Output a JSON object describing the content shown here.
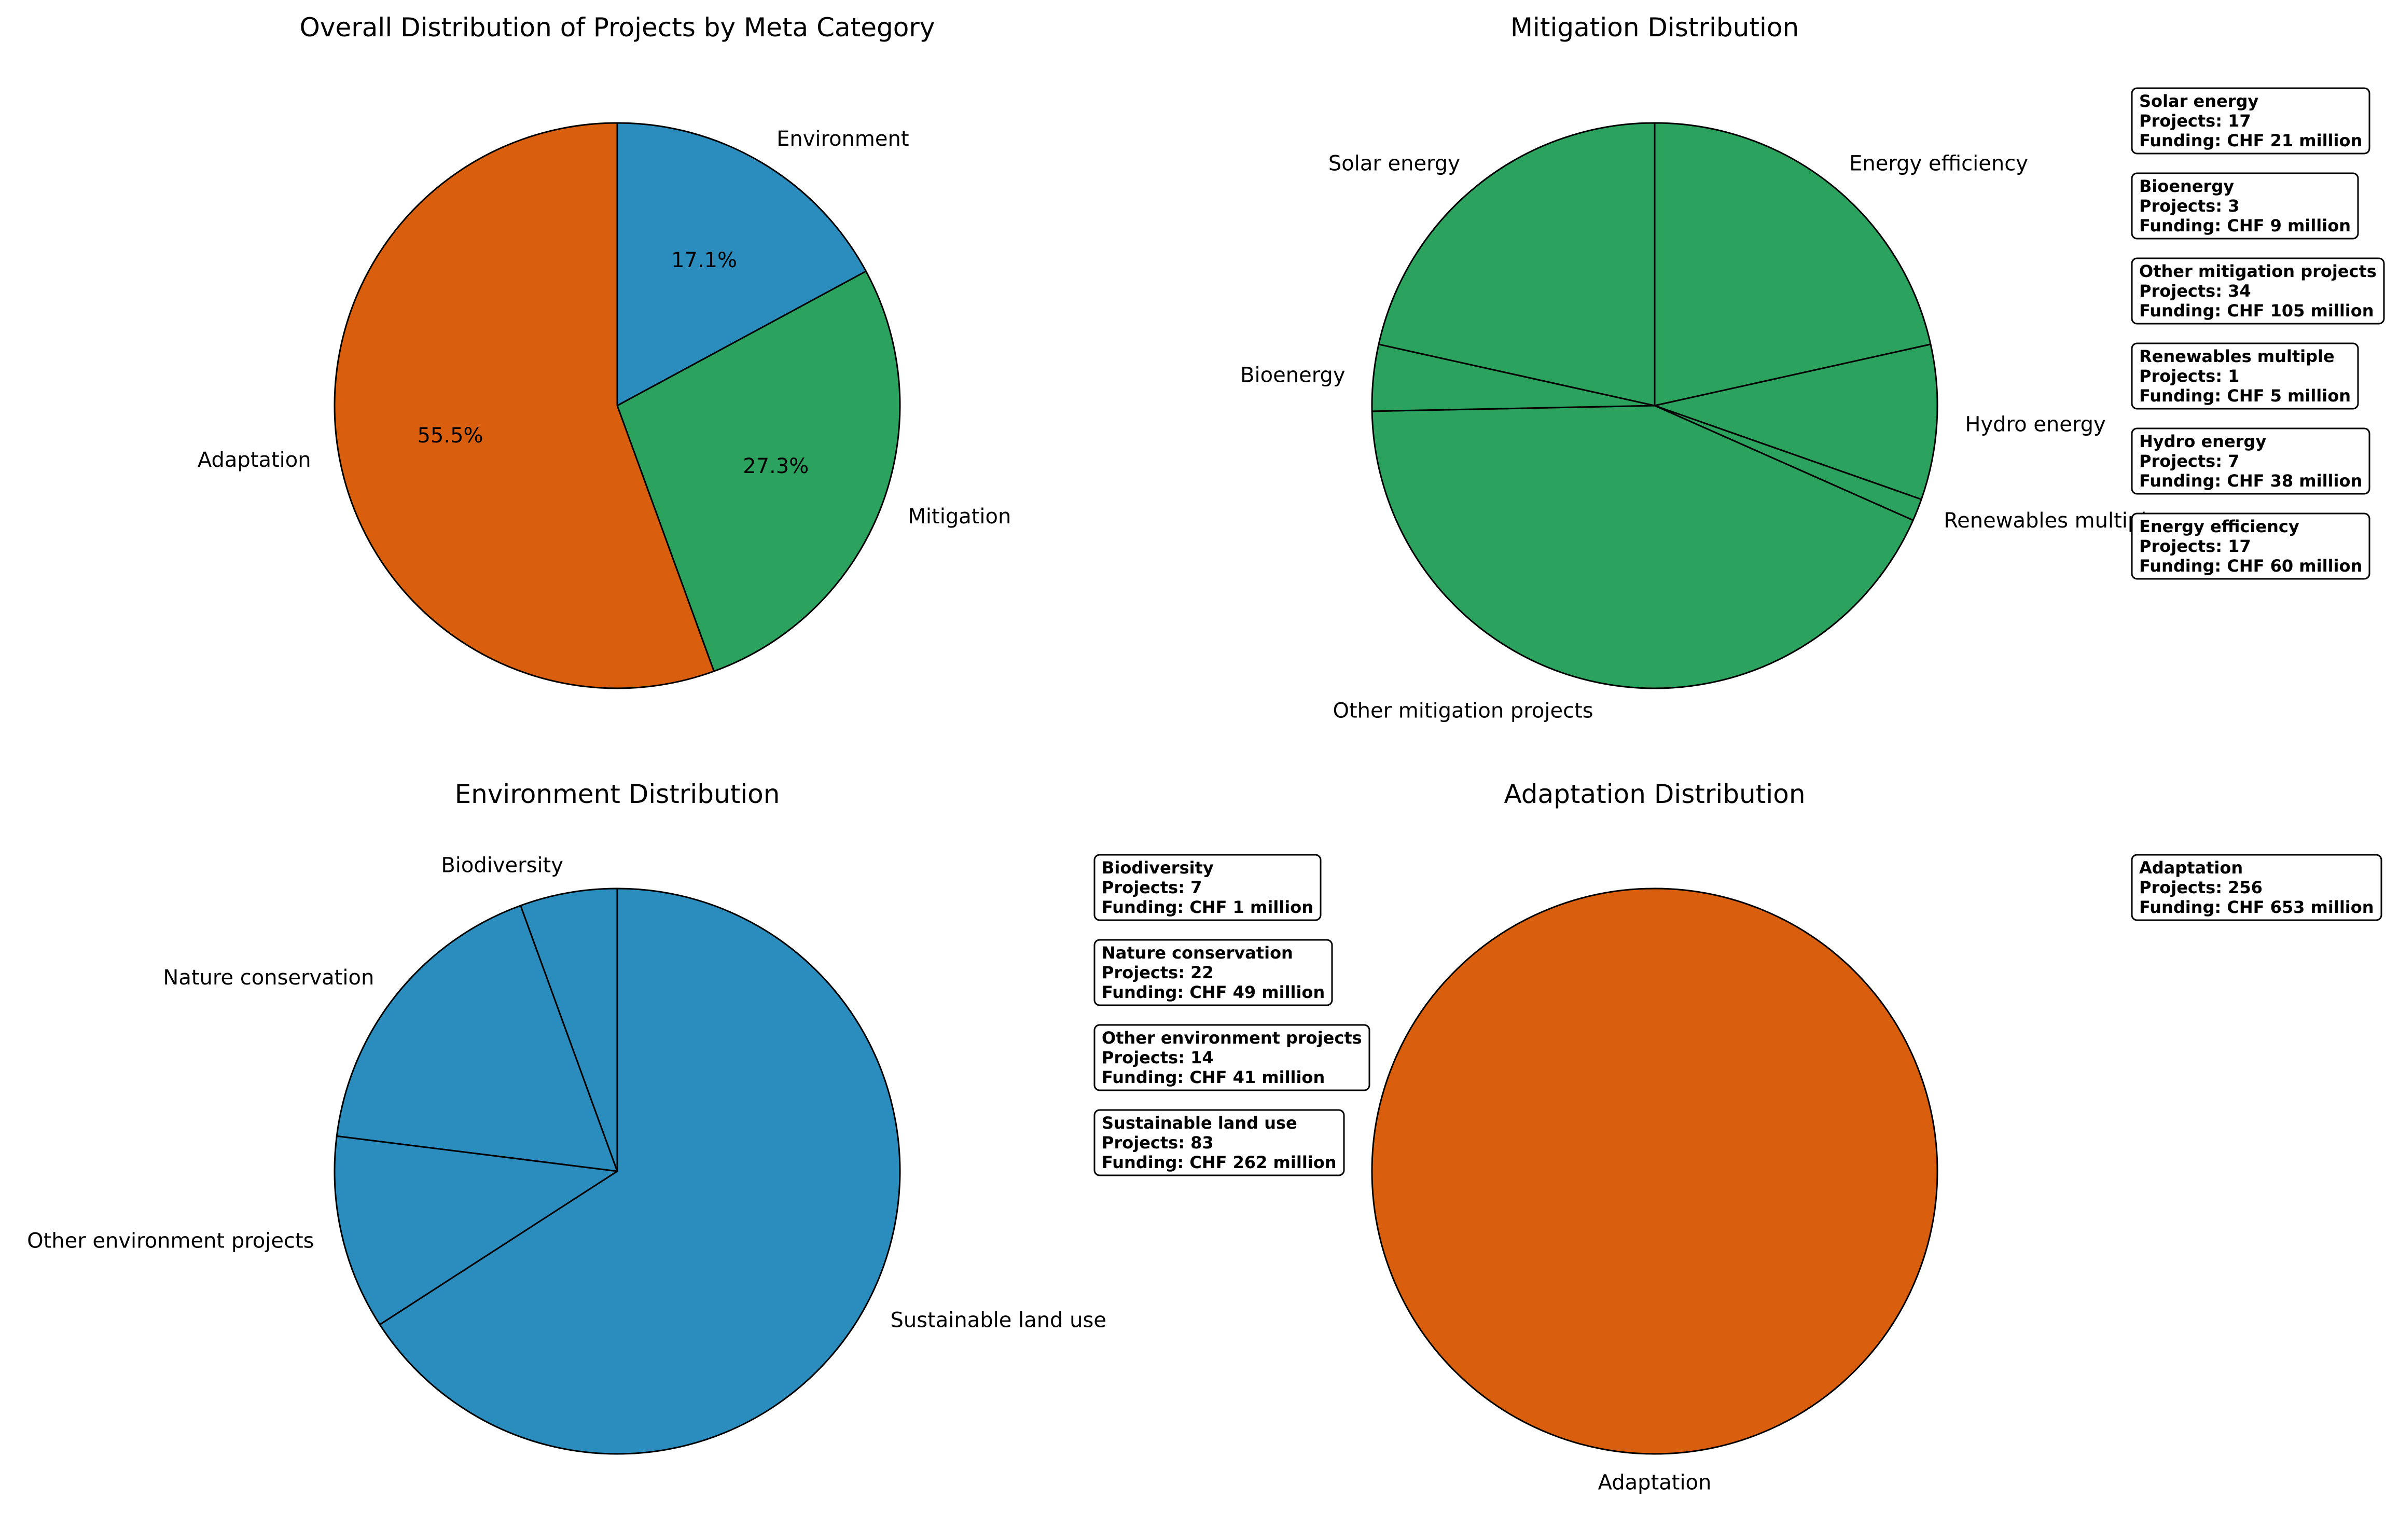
{
  "chart_data": [
    {
      "type": "pie",
      "title": "Overall Distribution of Projects by Meta Category",
      "start_angle": 90,
      "counterclock": false,
      "show_percent": true,
      "slices": [
        {
          "label": "Environment",
          "value": 17.1,
          "pct_label": "17.1%",
          "color": "#2b8cbe"
        },
        {
          "label": "Mitigation",
          "value": 27.3,
          "pct_label": "27.3%",
          "color": "#2ca25f"
        },
        {
          "label": "Adaptation",
          "value": 55.5,
          "pct_label": "55.5%",
          "color": "#d95f0e"
        }
      ]
    },
    {
      "type": "pie",
      "title": "Mitigation Distribution",
      "start_angle": 90,
      "counterclock": false,
      "show_percent": false,
      "color": "#2ca25f",
      "slices": [
        {
          "label": "Energy efficiency",
          "projects": 17,
          "funding": "CHF 60 million"
        },
        {
          "label": "Hydro energy",
          "projects": 7,
          "funding": "CHF 38 million"
        },
        {
          "label": "Renewables multiple",
          "projects": 1,
          "funding": "CHF 5 million"
        },
        {
          "label": "Other mitigation projects",
          "projects": 34,
          "funding": "CHF 105 million"
        },
        {
          "label": "Bioenergy",
          "projects": 3,
          "funding": "CHF 9 million"
        },
        {
          "label": "Solar energy",
          "projects": 17,
          "funding": "CHF 21 million"
        }
      ],
      "boxes_order": [
        "Solar energy",
        "Bioenergy",
        "Other mitigation projects",
        "Renewables multiple",
        "Hydro energy",
        "Energy efficiency"
      ]
    },
    {
      "type": "pie",
      "title": "Environment Distribution",
      "start_angle": 90,
      "counterclock": false,
      "show_percent": false,
      "color": "#2b8cbe",
      "slices": [
        {
          "label": "Sustainable land use",
          "projects": 83,
          "funding": "CHF 262 million"
        },
        {
          "label": "Other environment projects",
          "projects": 14,
          "funding": "CHF 41 million"
        },
        {
          "label": "Nature conservation",
          "projects": 22,
          "funding": "CHF 49 million"
        },
        {
          "label": "Biodiversity",
          "projects": 7,
          "funding": "CHF 1 million"
        }
      ],
      "boxes_order": [
        "Biodiversity",
        "Nature conservation",
        "Other environment projects",
        "Sustainable land use"
      ]
    },
    {
      "type": "pie",
      "title": "Adaptation Distribution",
      "start_angle": 90,
      "counterclock": false,
      "show_percent": false,
      "color": "#d95f0e",
      "slices": [
        {
          "label": "Adaptation",
          "projects": 256,
          "funding": "CHF 653 million"
        }
      ],
      "boxes_order": [
        "Adaptation"
      ]
    }
  ],
  "box_text": {
    "projects_prefix": "Projects: ",
    "funding_prefix": "Funding: "
  }
}
